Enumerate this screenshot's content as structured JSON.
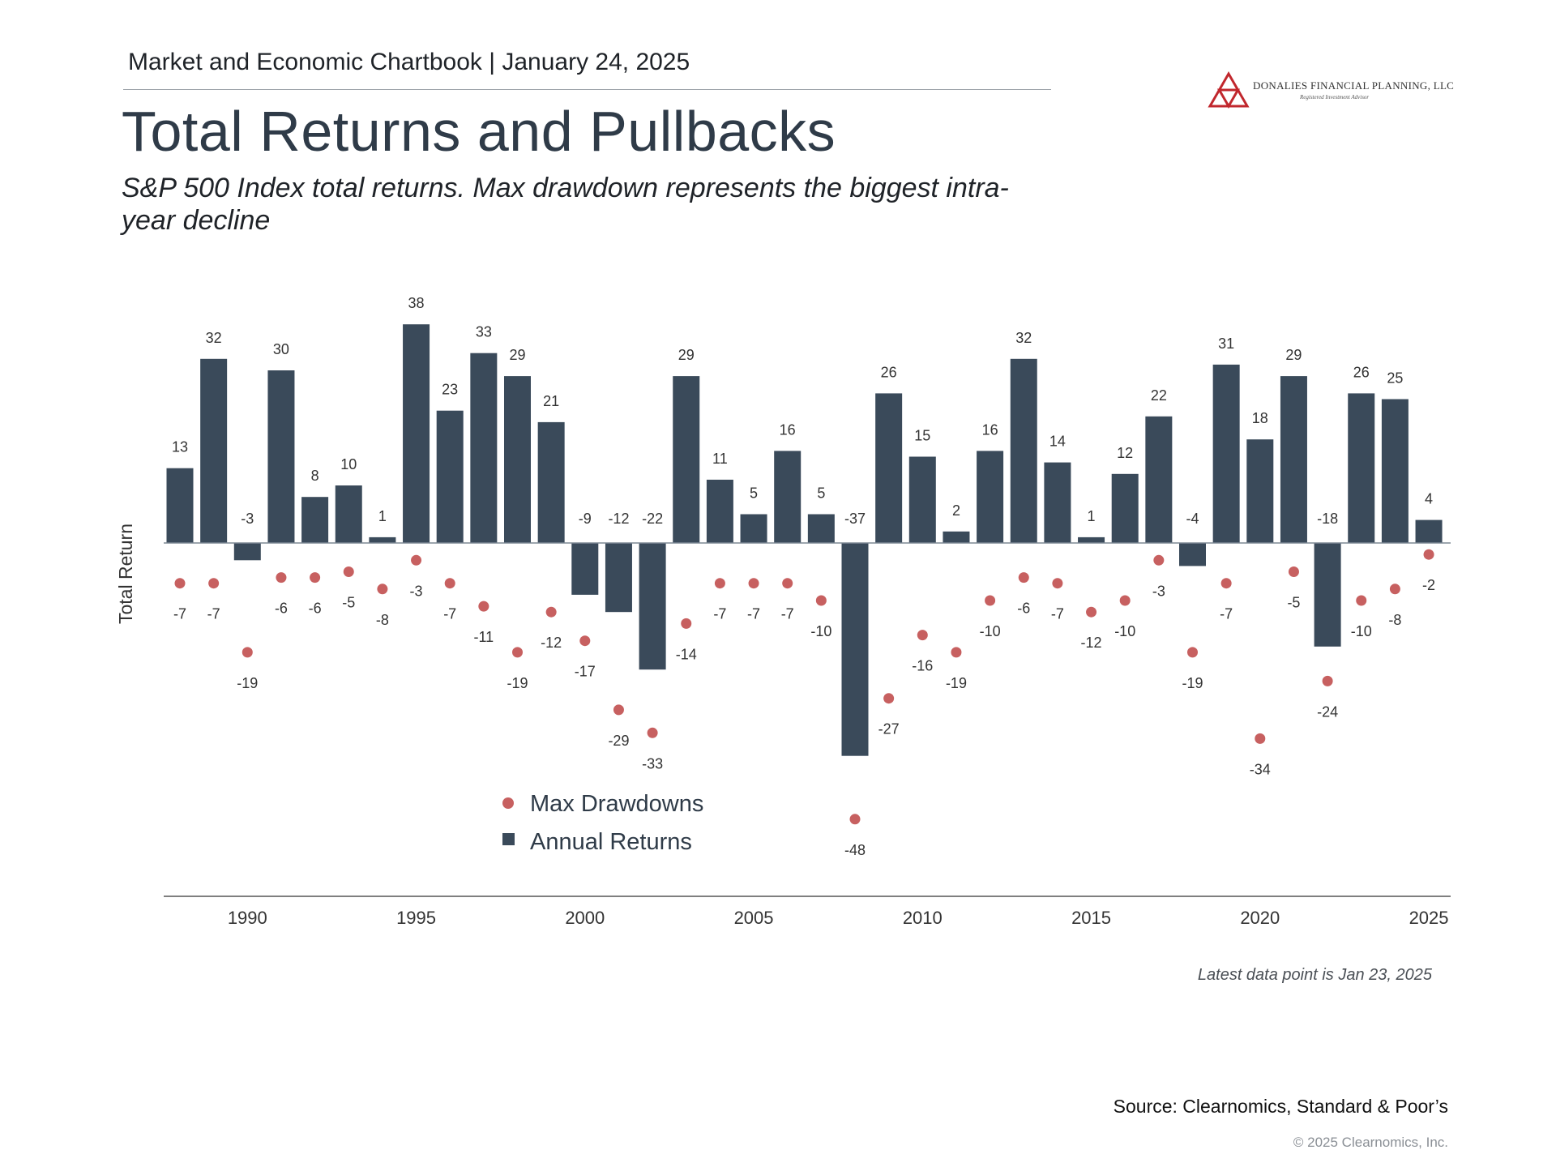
{
  "header": {
    "chartbook": "Market and Economic Chartbook | January 24, 2025",
    "title": "Total Returns and Pullbacks",
    "subtitle": "S&P 500 Index total returns. Max drawdown represents the biggest intra-year decline"
  },
  "logo": {
    "name": "DONALIES FINANCIAL PLANNING, LLC",
    "tagline": "Registered Investment Advisor",
    "color": "#c1272d"
  },
  "chart_data": {
    "type": "bar",
    "ylabel": "Total Return",
    "ylim": [
      -60,
      45
    ],
    "x": [
      1988,
      1989,
      1990,
      1991,
      1992,
      1993,
      1994,
      1995,
      1996,
      1997,
      1998,
      1999,
      2000,
      2001,
      2002,
      2003,
      2004,
      2005,
      2006,
      2007,
      2008,
      2009,
      2010,
      2011,
      2012,
      2013,
      2014,
      2015,
      2016,
      2017,
      2018,
      2019,
      2020,
      2021,
      2022,
      2023,
      2024,
      2025
    ],
    "xticks": [
      "1990",
      "1995",
      "2000",
      "2005",
      "2010",
      "2015",
      "2020",
      "2025"
    ],
    "series": [
      {
        "name": "Annual Returns",
        "kind": "bar",
        "color": "#3a4a5a",
        "values": [
          13,
          32,
          -3,
          30,
          8,
          10,
          1,
          38,
          23,
          33,
          29,
          21,
          -9,
          -12,
          -22,
          29,
          11,
          5,
          16,
          5,
          -37,
          26,
          15,
          2,
          16,
          32,
          14,
          1,
          12,
          22,
          -4,
          31,
          18,
          29,
          -18,
          26,
          25,
          4
        ]
      },
      {
        "name": "Max Drawdowns",
        "kind": "scatter",
        "color": "#c76060",
        "values": [
          -7,
          -7,
          -19,
          -6,
          -6,
          -5,
          -8,
          -3,
          -7,
          -11,
          -19,
          -12,
          -17,
          -29,
          -33,
          -14,
          -7,
          -7,
          -7,
          -10,
          -48,
          -27,
          -16,
          -19,
          -10,
          -6,
          -7,
          -12,
          -10,
          -3,
          -19,
          -7,
          -34,
          -5,
          -24,
          -10,
          -8,
          -2
        ]
      }
    ],
    "legend": [
      "Max Drawdowns",
      "Annual Returns"
    ],
    "legend_position": "bottom-left"
  },
  "footer": {
    "note": "Latest data point is Jan 23, 2025",
    "source": "Source: Clearnomics, Standard & Poor’s",
    "copyright": "© 2025 Clearnomics, Inc."
  }
}
